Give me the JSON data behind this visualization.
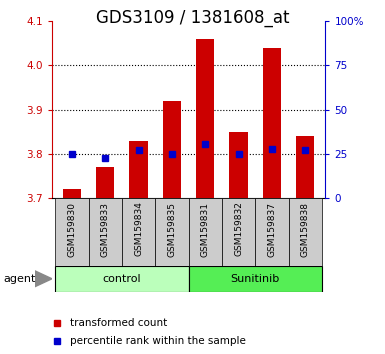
{
  "title": "GDS3109 / 1381608_at",
  "samples": [
    "GSM159830",
    "GSM159833",
    "GSM159834",
    "GSM159835",
    "GSM159831",
    "GSM159832",
    "GSM159837",
    "GSM159838"
  ],
  "red_bar_values": [
    3.72,
    3.77,
    3.83,
    3.92,
    4.06,
    3.85,
    4.04,
    3.84
  ],
  "blue_dot_values": [
    3.8,
    3.79,
    3.81,
    3.8,
    3.822,
    3.8,
    3.812,
    3.808
  ],
  "baseline": 3.7,
  "ylim_left": [
    3.7,
    4.1
  ],
  "ylim_right": [
    0,
    100
  ],
  "yticks_left": [
    3.7,
    3.8,
    3.9,
    4.0,
    4.1
  ],
  "yticks_right": [
    0,
    25,
    50,
    75,
    100
  ],
  "ytick_labels_right": [
    "0",
    "25",
    "50",
    "75",
    "100%"
  ],
  "groups": [
    {
      "label": "control",
      "indices": [
        0,
        1,
        2,
        3
      ],
      "color": "#bbffbb"
    },
    {
      "label": "Sunitinib",
      "indices": [
        4,
        5,
        6,
        7
      ],
      "color": "#55ee55"
    }
  ],
  "bar_color": "#cc0000",
  "dot_color": "#0000cc",
  "bar_width": 0.55,
  "sample_bg_color": "#cccccc",
  "plot_bg": "#ffffff",
  "agent_label": "agent",
  "legend_red_label": "transformed count",
  "legend_blue_label": "percentile rank within the sample",
  "title_fontsize": 12,
  "tick_fontsize": 7.5
}
